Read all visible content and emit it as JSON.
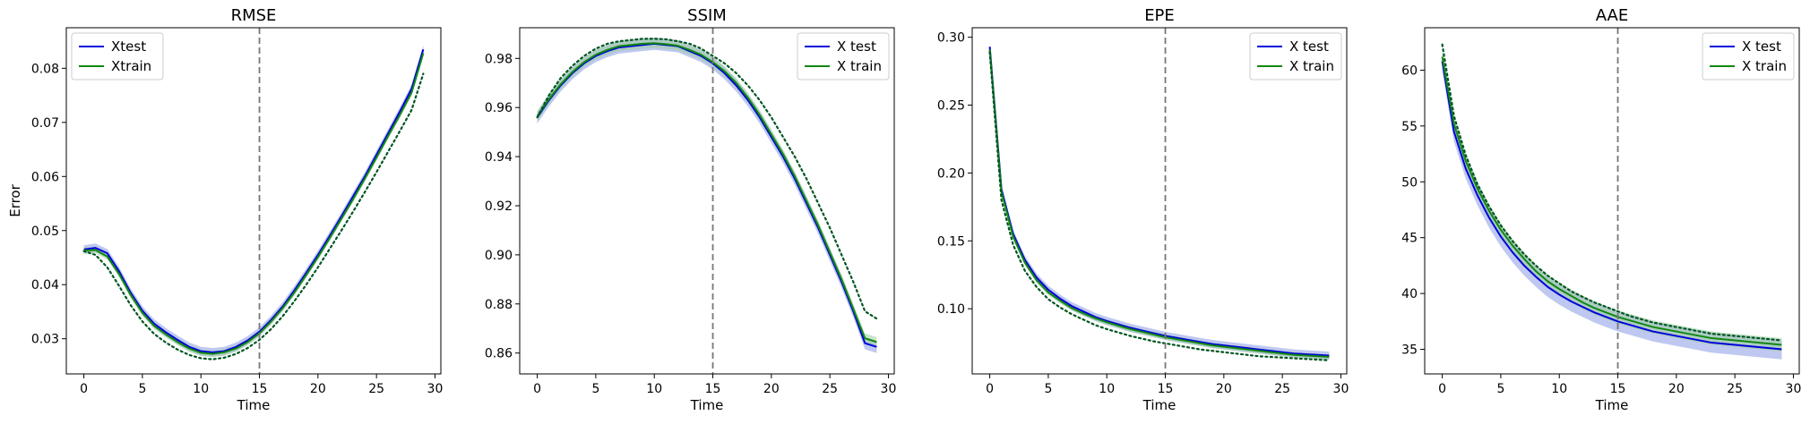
{
  "figure": {
    "ylabel": "Error",
    "colors": {
      "test": "#0000dd",
      "test_band": "#8a9be6",
      "train": "#118811",
      "train_band": "#9ccf9c",
      "dotted": "#005522",
      "vline": "#777777"
    }
  },
  "chart_data": [
    {
      "type": "line",
      "title": "RMSE",
      "xlabel": "Time",
      "ylabel": "Error",
      "xlim": [
        -1.5,
        30.5
      ],
      "ylim": [
        0.0235,
        0.0875
      ],
      "x_ticks": [
        0,
        5,
        10,
        15,
        20,
        25,
        30
      ],
      "y_ticks": [
        0.03,
        0.04,
        0.05,
        0.06,
        0.07,
        0.08
      ],
      "y_tick_labels": [
        "0.03",
        "0.04",
        "0.05",
        "0.06",
        "0.07",
        "0.08"
      ],
      "vline": 15,
      "legend": {
        "position": "top-left",
        "entries": [
          "Xtest",
          "Xtrain"
        ]
      },
      "series": [
        {
          "name": "Xtest",
          "role": "test",
          "band": 0.0008,
          "x": [
            0,
            1,
            2,
            3,
            4,
            5,
            6,
            7,
            8,
            9,
            10,
            11,
            12,
            13,
            14,
            15,
            16,
            17,
            18,
            19,
            20,
            21,
            22,
            23,
            24,
            25,
            26,
            27,
            28,
            29
          ],
          "values": [
            0.0465,
            0.0468,
            0.0458,
            0.0425,
            0.0385,
            0.0352,
            0.0328,
            0.0312,
            0.0298,
            0.0285,
            0.0277,
            0.0275,
            0.0277,
            0.0285,
            0.0297,
            0.0313,
            0.0335,
            0.036,
            0.039,
            0.0422,
            0.0455,
            0.049,
            0.0526,
            0.0563,
            0.06,
            0.064,
            0.068,
            0.072,
            0.0762,
            0.0835
          ]
        },
        {
          "name": "Xtrain",
          "role": "train",
          "band": 0.0006,
          "x": [
            0,
            1,
            2,
            3,
            4,
            5,
            6,
            7,
            8,
            9,
            10,
            11,
            12,
            13,
            14,
            15,
            16,
            17,
            18,
            19,
            20,
            21,
            22,
            23,
            24,
            25,
            26,
            27,
            28,
            29
          ],
          "values": [
            0.0463,
            0.0464,
            0.0452,
            0.042,
            0.0381,
            0.0348,
            0.0324,
            0.0308,
            0.0294,
            0.0282,
            0.0274,
            0.0272,
            0.0275,
            0.0282,
            0.0294,
            0.031,
            0.0332,
            0.0357,
            0.0386,
            0.0418,
            0.0451,
            0.0486,
            0.0522,
            0.0558,
            0.0596,
            0.0635,
            0.0675,
            0.0714,
            0.0755,
            0.0828
          ]
        },
        {
          "role": "dotted",
          "x": [
            0,
            1,
            2,
            3,
            4,
            5,
            6,
            7,
            8,
            9,
            10,
            11,
            12,
            13,
            14,
            15,
            16,
            17,
            18,
            19,
            20,
            21,
            22,
            23,
            24,
            25,
            26,
            27,
            28,
            29
          ],
          "values": [
            0.0462,
            0.0455,
            0.0432,
            0.0398,
            0.0362,
            0.0332,
            0.0309,
            0.0293,
            0.028,
            0.027,
            0.0264,
            0.0262,
            0.0265,
            0.0272,
            0.0283,
            0.0298,
            0.0318,
            0.0342,
            0.037,
            0.04,
            0.0432,
            0.0466,
            0.05,
            0.0535,
            0.0571,
            0.0608,
            0.0646,
            0.0684,
            0.0723,
            0.079
          ]
        }
      ]
    },
    {
      "type": "line",
      "title": "SSIM",
      "xlabel": "Time",
      "ylabel": "",
      "xlim": [
        -1.5,
        30.5
      ],
      "ylim": [
        0.8515,
        0.9925
      ],
      "x_ticks": [
        0,
        5,
        10,
        15,
        20,
        25,
        30
      ],
      "y_ticks": [
        0.86,
        0.88,
        0.9,
        0.92,
        0.94,
        0.96,
        0.98
      ],
      "y_tick_labels": [
        "0.86",
        "0.88",
        "0.90",
        "0.92",
        "0.94",
        "0.96",
        "0.98"
      ],
      "vline": 15,
      "legend": {
        "position": "top-right",
        "entries": [
          "X test",
          "X train"
        ]
      },
      "series": [
        {
          "name": "X test",
          "role": "test",
          "band": 0.0025,
          "x": [
            0,
            1,
            2,
            3,
            4,
            5,
            6,
            7,
            8,
            9,
            10,
            11,
            12,
            13,
            14,
            15,
            16,
            17,
            18,
            19,
            20,
            21,
            22,
            23,
            24,
            25,
            26,
            27,
            28,
            29
          ],
          "values": [
            0.956,
            0.963,
            0.969,
            0.974,
            0.978,
            0.981,
            0.983,
            0.9845,
            0.985,
            0.9855,
            0.986,
            0.9855,
            0.985,
            0.983,
            0.981,
            0.978,
            0.974,
            0.969,
            0.963,
            0.956,
            0.948,
            0.94,
            0.931,
            0.921,
            0.911,
            0.9,
            0.889,
            0.877,
            0.864,
            0.8625
          ]
        },
        {
          "name": "X train",
          "role": "train",
          "band": 0.002,
          "x": [
            0,
            1,
            2,
            3,
            4,
            5,
            6,
            7,
            8,
            9,
            10,
            11,
            12,
            13,
            14,
            15,
            16,
            17,
            18,
            19,
            20,
            21,
            22,
            23,
            24,
            25,
            26,
            27,
            28,
            29
          ],
          "values": [
            0.9565,
            0.9635,
            0.9695,
            0.9745,
            0.9785,
            0.9815,
            0.9835,
            0.985,
            0.9855,
            0.986,
            0.9862,
            0.9858,
            0.9852,
            0.9835,
            0.9815,
            0.9785,
            0.9748,
            0.97,
            0.964,
            0.957,
            0.949,
            0.941,
            0.932,
            0.922,
            0.912,
            0.901,
            0.89,
            0.878,
            0.866,
            0.8645
          ]
        },
        {
          "role": "dotted",
          "x": [
            0,
            1,
            2,
            3,
            4,
            5,
            6,
            7,
            8,
            9,
            10,
            11,
            12,
            13,
            14,
            15,
            16,
            17,
            18,
            19,
            20,
            21,
            22,
            23,
            24,
            25,
            26,
            27,
            28,
            29
          ],
          "values": [
            0.956,
            0.965,
            0.972,
            0.977,
            0.981,
            0.984,
            0.986,
            0.987,
            0.9875,
            0.988,
            0.988,
            0.9878,
            0.987,
            0.986,
            0.984,
            0.981,
            0.978,
            0.974,
            0.969,
            0.963,
            0.956,
            0.948,
            0.94,
            0.931,
            0.921,
            0.911,
            0.9,
            0.889,
            0.877,
            0.874
          ]
        }
      ]
    },
    {
      "type": "line",
      "title": "EPE",
      "xlabel": "Time",
      "ylabel": "",
      "xlim": [
        -1.5,
        30.5
      ],
      "ylim": [
        0.052,
        0.307
      ],
      "x_ticks": [
        0,
        5,
        10,
        15,
        20,
        25,
        30
      ],
      "y_ticks": [
        0.1,
        0.15,
        0.2,
        0.25,
        0.3
      ],
      "y_tick_labels": [
        "0.10",
        "0.15",
        "0.20",
        "0.25",
        "0.30"
      ],
      "vline": 15,
      "legend": {
        "position": "top-right",
        "entries": [
          "X test",
          "X train"
        ]
      },
      "series": [
        {
          "name": "X test",
          "role": "test",
          "band": 0.003,
          "x": [
            0,
            1,
            2,
            3,
            4,
            5,
            6,
            7,
            8,
            9,
            10,
            11,
            12,
            13,
            14,
            15,
            16,
            17,
            18,
            19,
            20,
            21,
            22,
            23,
            24,
            25,
            26,
            27,
            28,
            29
          ],
          "values": [
            0.293,
            0.188,
            0.155,
            0.136,
            0.123,
            0.114,
            0.1075,
            0.102,
            0.098,
            0.094,
            0.091,
            0.0885,
            0.086,
            0.084,
            0.082,
            0.08,
            0.0785,
            0.077,
            0.0755,
            0.074,
            0.073,
            0.072,
            0.071,
            0.07,
            0.069,
            0.068,
            0.067,
            0.0665,
            0.066,
            0.0655
          ]
        },
        {
          "name": "X train",
          "role": "train",
          "band": 0.002,
          "x": [
            0,
            1,
            2,
            3,
            4,
            5,
            6,
            7,
            8,
            9,
            10,
            11,
            12,
            13,
            14,
            15,
            16,
            17,
            18,
            19,
            20,
            21,
            22,
            23,
            24,
            25,
            26,
            27,
            28,
            29
          ],
          "values": [
            0.291,
            0.186,
            0.153,
            0.134,
            0.121,
            0.112,
            0.106,
            0.1005,
            0.0965,
            0.093,
            0.09,
            0.0875,
            0.085,
            0.083,
            0.081,
            0.079,
            0.0775,
            0.076,
            0.0745,
            0.073,
            0.072,
            0.071,
            0.07,
            0.069,
            0.068,
            0.067,
            0.066,
            0.0655,
            0.065,
            0.0645
          ]
        },
        {
          "role": "dotted",
          "x": [
            0,
            1,
            2,
            3,
            4,
            5,
            6,
            7,
            8,
            9,
            10,
            11,
            12,
            13,
            14,
            15,
            16,
            17,
            18,
            19,
            20,
            21,
            22,
            23,
            24,
            25,
            26,
            27,
            28,
            29
          ],
          "values": [
            0.289,
            0.18,
            0.147,
            0.128,
            0.116,
            0.107,
            0.101,
            0.096,
            0.092,
            0.088,
            0.085,
            0.0825,
            0.08,
            0.078,
            0.076,
            0.0745,
            0.073,
            0.0715,
            0.07,
            0.069,
            0.068,
            0.067,
            0.066,
            0.065,
            0.0645,
            0.064,
            0.0635,
            0.063,
            0.0625,
            0.062
          ]
        }
      ]
    },
    {
      "type": "line",
      "title": "AAE",
      "xlabel": "Time",
      "ylabel": "",
      "xlim": [
        -1.5,
        30.5
      ],
      "ylim": [
        32.8,
        63.8
      ],
      "x_ticks": [
        0,
        5,
        10,
        15,
        20,
        25,
        30
      ],
      "y_ticks": [
        35,
        40,
        45,
        50,
        55,
        60
      ],
      "y_tick_labels": [
        "35",
        "40",
        "45",
        "50",
        "55",
        "60"
      ],
      "vline": 15,
      "legend": {
        "position": "top-right",
        "entries": [
          "X test",
          "X train"
        ]
      },
      "series": [
        {
          "name": "X test",
          "role": "test",
          "band": 0.9,
          "x": [
            0,
            1,
            2,
            3,
            4,
            5,
            6,
            7,
            8,
            9,
            10,
            11,
            12,
            13,
            14,
            15,
            16,
            17,
            18,
            19,
            20,
            21,
            22,
            23,
            24,
            25,
            26,
            27,
            28,
            29
          ],
          "values": [
            60.8,
            54.5,
            51.2,
            48.8,
            46.8,
            45.1,
            43.7,
            42.5,
            41.5,
            40.6,
            39.9,
            39.3,
            38.8,
            38.3,
            37.9,
            37.5,
            37.2,
            36.9,
            36.6,
            36.4,
            36.2,
            36.0,
            35.8,
            35.6,
            35.5,
            35.4,
            35.3,
            35.2,
            35.1,
            35.0
          ]
        },
        {
          "name": "X train",
          "role": "train",
          "band": 0.6,
          "x": [
            0,
            1,
            2,
            3,
            4,
            5,
            6,
            7,
            8,
            9,
            10,
            11,
            12,
            13,
            14,
            15,
            16,
            17,
            18,
            19,
            20,
            21,
            22,
            23,
            24,
            25,
            26,
            27,
            28,
            29
          ],
          "values": [
            61.2,
            55.2,
            51.9,
            49.4,
            47.4,
            45.7,
            44.3,
            43.1,
            42.0,
            41.1,
            40.4,
            39.8,
            39.2,
            38.7,
            38.3,
            37.9,
            37.6,
            37.3,
            37.0,
            36.8,
            36.6,
            36.4,
            36.2,
            36.0,
            35.9,
            35.8,
            35.7,
            35.6,
            35.5,
            35.4
          ]
        },
        {
          "role": "dotted",
          "x": [
            0,
            1,
            2,
            3,
            4,
            5,
            6,
            7,
            8,
            9,
            10,
            11,
            12,
            13,
            14,
            15,
            16,
            17,
            18,
            19,
            20,
            21,
            22,
            23,
            24,
            25,
            26,
            27,
            28,
            29
          ],
          "values": [
            62.3,
            55.9,
            52.4,
            49.8,
            47.8,
            46.1,
            44.7,
            43.5,
            42.5,
            41.6,
            40.9,
            40.2,
            39.7,
            39.2,
            38.8,
            38.4,
            38.0,
            37.7,
            37.4,
            37.2,
            37.0,
            36.8,
            36.6,
            36.4,
            36.3,
            36.2,
            36.1,
            36.0,
            35.9,
            35.8
          ]
        }
      ]
    }
  ]
}
